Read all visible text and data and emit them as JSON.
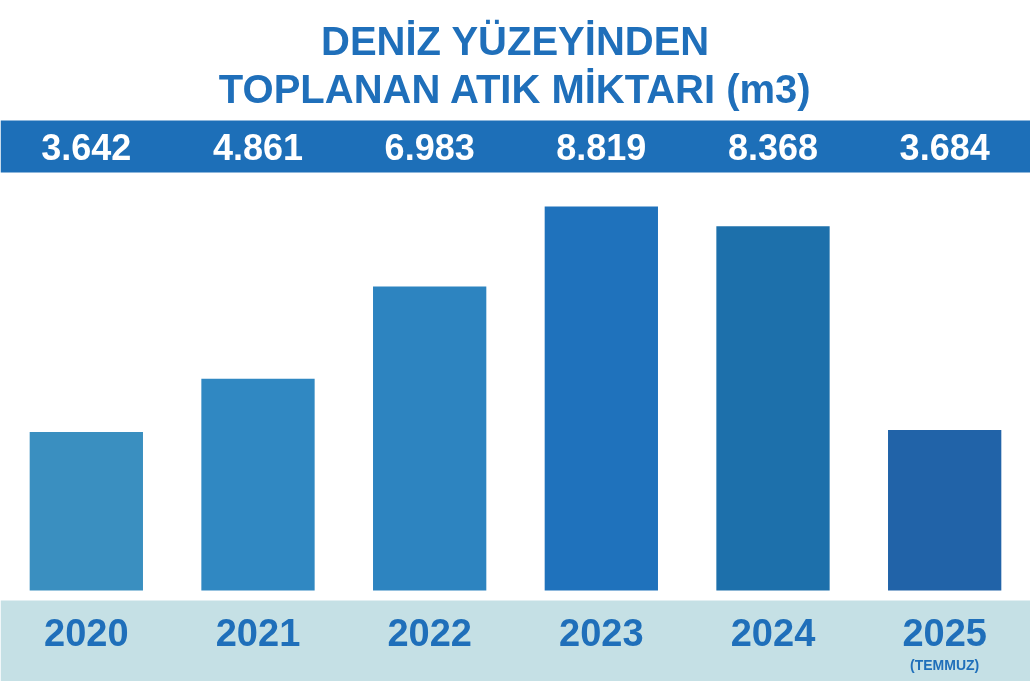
{
  "chart_data": {
    "type": "bar",
    "title": "DENİZ YÜZEYİNDEN\nTOPLANAN ATIK MİKTARI (m3)",
    "categories": [
      "2020",
      "2021",
      "2022",
      "2023",
      "2024",
      "2025\n(TEMMUZ)"
    ],
    "values": [
      3642,
      4861,
      6983,
      8819,
      8368,
      3684
    ],
    "colors": [
      "#3a8fc0",
      "#3088c2",
      "#2d84c0",
      "#1f72bc",
      "#1d70ab",
      "#2163a8"
    ],
    "value_labels": [
      "3.642",
      "4.861",
      "6.983",
      "8.819",
      "8.368",
      "3.684"
    ],
    "grid": false
  }
}
